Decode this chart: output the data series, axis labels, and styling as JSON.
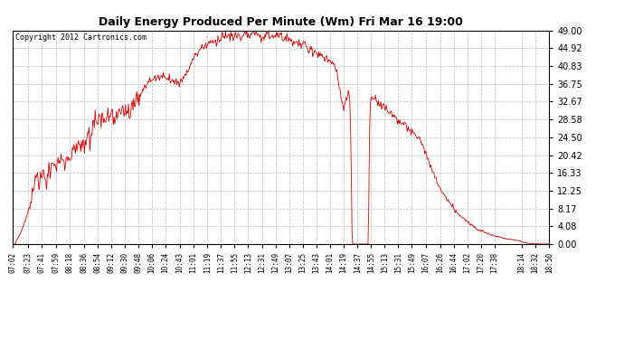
{
  "title": "Daily Energy Produced Per Minute (Wm) Fri Mar 16 19:00",
  "copyright_text": "Copyright 2012 Cartronics.com",
  "line_color": "#CC0000",
  "background_color": "#FFFFFF",
  "plot_bg_color": "#FFFFFF",
  "grid_color": "#AAAAAA",
  "yticks": [
    0.0,
    4.08,
    8.17,
    12.25,
    16.33,
    20.42,
    24.5,
    28.58,
    32.67,
    36.75,
    40.83,
    44.92,
    49.0
  ],
  "ymax": 49.0,
  "ymin": 0.0,
  "xtick_labels": [
    "07:02",
    "07:23",
    "07:41",
    "07:59",
    "08:18",
    "08:36",
    "08:54",
    "09:12",
    "09:30",
    "09:48",
    "10:06",
    "10:24",
    "10:43",
    "11:01",
    "11:19",
    "11:37",
    "11:55",
    "12:13",
    "12:31",
    "12:49",
    "13:07",
    "13:25",
    "13:43",
    "14:01",
    "14:19",
    "14:37",
    "14:55",
    "15:13",
    "15:31",
    "15:49",
    "16:07",
    "16:26",
    "16:44",
    "17:02",
    "17:20",
    "17:38",
    "18:14",
    "18:32",
    "18:50"
  ]
}
